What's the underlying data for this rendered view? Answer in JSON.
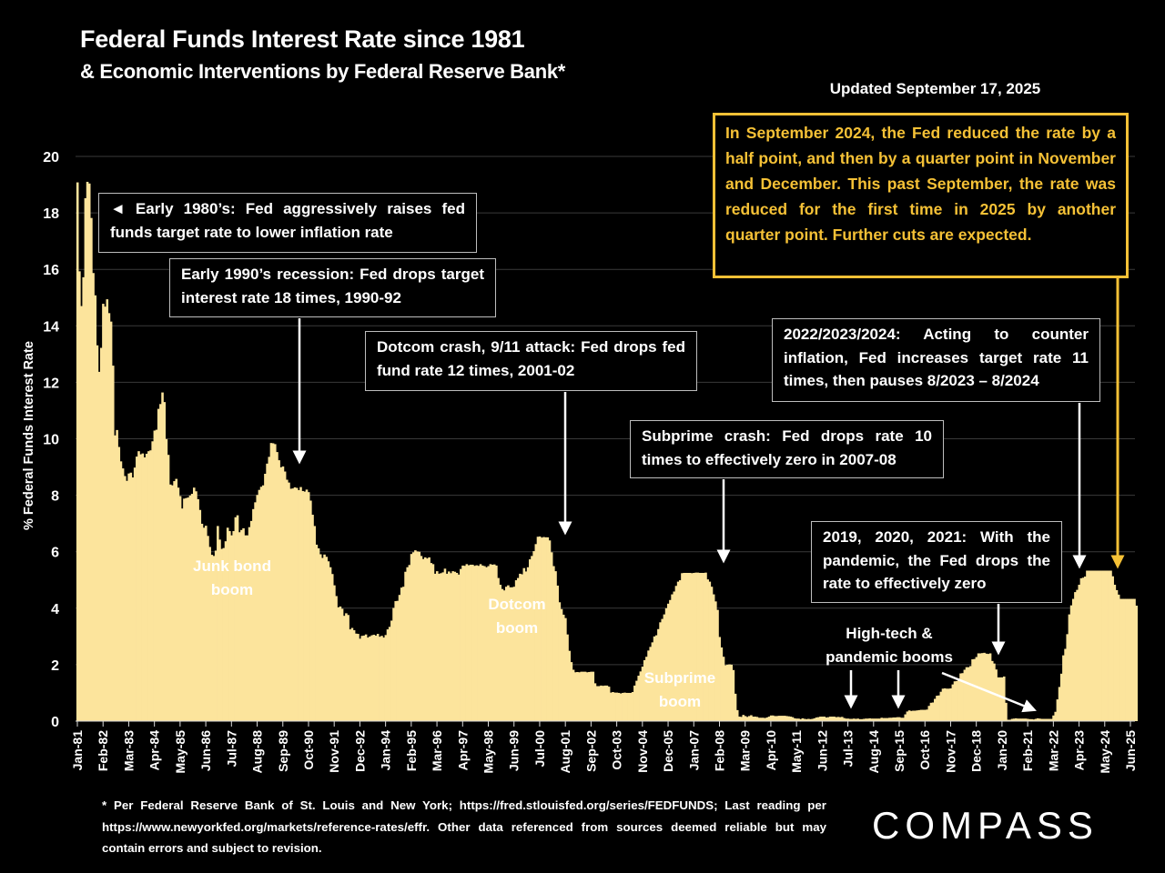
{
  "header": {
    "title": "Federal Funds Interest Rate since 1981",
    "subtitle": "& Economic Interventions by Federal Reserve Bank*",
    "updated": "Updated September 17, 2025"
  },
  "callout": "In September 2024, the Fed reduced the rate by a half point, and then by a quarter point in November and December. This past September, the rate was reduced for the first time in 2025  by another quarter point. Further cuts are expected.",
  "annotations": {
    "early_80s": "◄ Early 1980’s: Fed aggressively raises fed funds target rate to lower inflation rate",
    "early_90s": "Early 1990’s recession: Fed drops target interest rate 18 times, 1990-92",
    "dotcom_crash": "Dotcom crash, 9/11 attack: Fed drops fed fund rate 12 times, 2001-02",
    "subprime_crash": "Subprime crash: Fed drops rate 10 times to effectively zero in 2007-08",
    "hikes_2022": "2022/2023/2024: Acting to counter inflation, Fed increases target rate 11 times, then pauses 8/2023 – 8/2024",
    "pandemic": "2019, 2020, 2021: With the pandemic, the Fed drops the  rate to effectively zero",
    "junk_bond_1": "Junk bond",
    "junk_bond_2": "boom",
    "dotcom_boom_1": "Dotcom",
    "dotcom_boom_2": "boom",
    "subprime_boom_1": "Subprime",
    "subprime_boom_2": "boom",
    "hightech_1": "High-tech &",
    "hightech_2": "pandemic booms"
  },
  "footnote": "* Per Federal Reserve Bank of St. Louis and New York; https://fred.stlouisfed.org/series/FEDFUNDS; Last reading per https://www.newyorkfed.org/markets/reference-rates/effr. Other data referenced from sources deemed reliable but may contain errors and subject to revision.",
  "logo": "COMPASS",
  "colors": {
    "fill": "#fce49c",
    "callout": "#f5c136",
    "background": "#000000",
    "grid": "#3a3a3a"
  },
  "chart_data": {
    "type": "area",
    "title": "Federal Funds Interest Rate since 1981",
    "ylabel": "% Federal Funds Interest Rate",
    "xlabel": "",
    "ylim": [
      0,
      20
    ],
    "yticks": [
      0,
      2,
      4,
      6,
      8,
      10,
      12,
      14,
      16,
      18,
      20
    ],
    "grid": true,
    "xtick_labels": [
      "Jan-81",
      "Feb-82",
      "Mar-83",
      "Apr-84",
      "May-85",
      "Jun-86",
      "Jul-87",
      "Aug-88",
      "Sep-89",
      "Oct-90",
      "Nov-91",
      "Dec-92",
      "Jan-94",
      "Feb-95",
      "Mar-96",
      "Apr-97",
      "May-98",
      "Jun-99",
      "Jul-00",
      "Aug-01",
      "Sep-02",
      "Oct-03",
      "Nov-04",
      "Dec-05",
      "Jan-07",
      "Feb-08",
      "Mar-09",
      "Apr-10",
      "May-11",
      "Jun-12",
      "Jul-13",
      "Aug-14",
      "Sep-15",
      "Oct-16",
      "Nov-17",
      "Dec-18",
      "Jan-20",
      "Feb-21",
      "Mar-22",
      "Apr-23",
      "May-24",
      "Jun-25"
    ],
    "frequency": "monthly",
    "monthly_values_by_year": {
      "1981": [
        19.08,
        15.93,
        14.7,
        15.72,
        18.52,
        19.1,
        19.04,
        17.82,
        15.87,
        15.08,
        13.31,
        12.37
      ],
      "1982": [
        13.22,
        14.78,
        14.68,
        14.94,
        14.45,
        14.15,
        12.59,
        10.12,
        10.31,
        9.71,
        9.2,
        8.95
      ],
      "1983": [
        8.68,
        8.51,
        8.77,
        8.8,
        8.63,
        8.98,
        9.37,
        9.56,
        9.45,
        9.48,
        9.34,
        9.47
      ],
      "1984": [
        9.56,
        9.59,
        9.91,
        10.29,
        10.32,
        11.06,
        11.23,
        11.64,
        11.3,
        9.99,
        9.43,
        8.38
      ],
      "1985": [
        8.35,
        8.5,
        8.58,
        8.27,
        7.97,
        7.53,
        7.88,
        7.9,
        7.92,
        7.99,
        8.05,
        8.27
      ],
      "1986": [
        8.14,
        7.86,
        7.48,
        6.99,
        6.85,
        6.92,
        6.56,
        6.17,
        5.89,
        5.85,
        6.04,
        6.91
      ],
      "1987": [
        6.43,
        6.1,
        6.13,
        6.37,
        6.85,
        6.73,
        6.58,
        6.73,
        7.22,
        7.29,
        6.69,
        6.77
      ],
      "1988": [
        6.83,
        6.58,
        6.58,
        6.87,
        7.09,
        7.51,
        7.75,
        8.01,
        8.19,
        8.3,
        8.35,
        8.76
      ],
      "1989": [
        9.12,
        9.36,
        9.85,
        9.84,
        9.81,
        9.53,
        9.24,
        8.99,
        9.02,
        8.84,
        8.55,
        8.45
      ],
      "1990": [
        8.23,
        8.24,
        8.28,
        8.26,
        8.18,
        8.29,
        8.15,
        8.13,
        8.2,
        8.11,
        7.81,
        7.31
      ],
      "1991": [
        6.91,
        6.25,
        6.12,
        5.91,
        5.78,
        5.9,
        5.82,
        5.66,
        5.45,
        5.21,
        4.81,
        4.43
      ],
      "1992": [
        4.03,
        4.06,
        3.98,
        3.73,
        3.82,
        3.76,
        3.25,
        3.3,
        3.22,
        3.1,
        3.09,
        2.92
      ],
      "1993": [
        3.02,
        3.03,
        3.07,
        2.96,
        3.0,
        3.04,
        3.06,
        3.03,
        3.09,
        2.99,
        3.02,
        2.96
      ],
      "1994": [
        3.05,
        3.25,
        3.34,
        3.56,
        4.01,
        4.25,
        4.26,
        4.47,
        4.73,
        4.76,
        5.29,
        5.45
      ],
      "1995": [
        5.53,
        5.92,
        5.98,
        6.05,
        6.01,
        6.0,
        5.85,
        5.74,
        5.8,
        5.76,
        5.8,
        5.6
      ],
      "1996": [
        5.56,
        5.22,
        5.31,
        5.22,
        5.24,
        5.27,
        5.4,
        5.22,
        5.3,
        5.24,
        5.31,
        5.29
      ],
      "1997": [
        5.25,
        5.19,
        5.39,
        5.51,
        5.5,
        5.56,
        5.52,
        5.54,
        5.54,
        5.5,
        5.52,
        5.5
      ],
      "1998": [
        5.56,
        5.51,
        5.49,
        5.45,
        5.49,
        5.56,
        5.54,
        5.55,
        5.51,
        5.07,
        4.83,
        4.68
      ],
      "1999": [
        4.63,
        4.76,
        4.81,
        4.74,
        4.74,
        4.76,
        4.99,
        5.07,
        5.22,
        5.2,
        5.42,
        5.3
      ],
      "2000": [
        5.45,
        5.73,
        5.85,
        6.02,
        6.27,
        6.53,
        6.54,
        6.5,
        6.52,
        6.51,
        6.51,
        6.4
      ],
      "2001": [
        5.98,
        5.49,
        5.31,
        4.8,
        4.21,
        3.97,
        3.77,
        3.65,
        3.07,
        2.49,
        2.09,
        1.82
      ],
      "2002": [
        1.73,
        1.74,
        1.73,
        1.75,
        1.75,
        1.75,
        1.73,
        1.74,
        1.75,
        1.75,
        1.34,
        1.24
      ],
      "2003": [
        1.24,
        1.26,
        1.25,
        1.26,
        1.26,
        1.22,
        1.01,
        1.03,
        1.01,
        1.01,
        1.0,
        0.98
      ],
      "2004": [
        1.0,
        1.01,
        1.0,
        1.0,
        1.0,
        1.03,
        1.26,
        1.43,
        1.61,
        1.76,
        1.93,
        2.16
      ],
      "2005": [
        2.28,
        2.5,
        2.63,
        2.79,
        3.0,
        3.04,
        3.26,
        3.5,
        3.62,
        3.78,
        4.0,
        4.16
      ],
      "2006": [
        4.29,
        4.49,
        4.59,
        4.79,
        4.94,
        4.99,
        5.24,
        5.25,
        5.25,
        5.25,
        5.25,
        5.24
      ],
      "2007": [
        5.25,
        5.26,
        5.26,
        5.25,
        5.25,
        5.25,
        5.26,
        5.02,
        4.94,
        4.76,
        4.49,
        4.24
      ],
      "2008": [
        3.94,
        2.98,
        2.61,
        2.28,
        1.98,
        2.0,
        2.01,
        2.0,
        1.81,
        0.97,
        0.39,
        0.16
      ],
      "2009": [
        0.15,
        0.22,
        0.18,
        0.15,
        0.18,
        0.21,
        0.16,
        0.16,
        0.15,
        0.12,
        0.12,
        0.12
      ],
      "2010": [
        0.11,
        0.13,
        0.16,
        0.2,
        0.2,
        0.18,
        0.18,
        0.19,
        0.19,
        0.19,
        0.19,
        0.18
      ],
      "2011": [
        0.17,
        0.16,
        0.14,
        0.1,
        0.09,
        0.09,
        0.07,
        0.1,
        0.08,
        0.07,
        0.08,
        0.07
      ],
      "2012": [
        0.08,
        0.1,
        0.13,
        0.14,
        0.16,
        0.16,
        0.16,
        0.13,
        0.14,
        0.16,
        0.16,
        0.16
      ],
      "2013": [
        0.14,
        0.15,
        0.14,
        0.15,
        0.11,
        0.09,
        0.09,
        0.08,
        0.08,
        0.09,
        0.08,
        0.09
      ],
      "2014": [
        0.07,
        0.07,
        0.08,
        0.09,
        0.09,
        0.1,
        0.09,
        0.09,
        0.09,
        0.09,
        0.09,
        0.12
      ],
      "2015": [
        0.11,
        0.11,
        0.11,
        0.12,
        0.12,
        0.13,
        0.13,
        0.14,
        0.14,
        0.12,
        0.12,
        0.24
      ],
      "2016": [
        0.34,
        0.38,
        0.36,
        0.37,
        0.37,
        0.38,
        0.39,
        0.4,
        0.4,
        0.4,
        0.41,
        0.54
      ],
      "2017": [
        0.65,
        0.66,
        0.79,
        0.9,
        0.91,
        1.04,
        1.15,
        1.16,
        1.15,
        1.15,
        1.16,
        1.3
      ],
      "2018": [
        1.41,
        1.42,
        1.51,
        1.69,
        1.7,
        1.82,
        1.91,
        1.91,
        1.95,
        2.19,
        2.2,
        2.27
      ],
      "2019": [
        2.4,
        2.4,
        2.41,
        2.42,
        2.39,
        2.38,
        2.4,
        2.13,
        2.04,
        1.83,
        1.55,
        1.55
      ],
      "2020": [
        1.55,
        1.58,
        0.65,
        0.05,
        0.05,
        0.08,
        0.09,
        0.1,
        0.09,
        0.09,
        0.09,
        0.09
      ],
      "2021": [
        0.09,
        0.08,
        0.07,
        0.07,
        0.06,
        0.08,
        0.1,
        0.09,
        0.08,
        0.08,
        0.08,
        0.08
      ],
      "2022": [
        0.08,
        0.08,
        0.2,
        0.33,
        0.77,
        1.21,
        1.68,
        2.33,
        2.56,
        3.08,
        3.78,
        4.1
      ],
      "2023": [
        4.33,
        4.57,
        4.65,
        4.83,
        5.06,
        5.08,
        5.12,
        5.33,
        5.33,
        5.33,
        5.33,
        5.33
      ],
      "2024": [
        5.33,
        5.33,
        5.33,
        5.33,
        5.33,
        5.33,
        5.33,
        5.33,
        5.13,
        4.83,
        4.64,
        4.48
      ],
      "2025": [
        4.33,
        4.33,
        4.33,
        4.33,
        4.33,
        4.33,
        4.33,
        4.33,
        4.09
      ]
    }
  }
}
